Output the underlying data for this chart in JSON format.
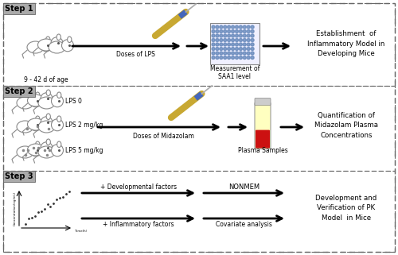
{
  "bg_color": "#ffffff",
  "border_color": "#666666",
  "step_bg": "#aaaaaa",
  "step1": {
    "label": "Step 1",
    "mice_label": "9 - 42 d of age",
    "arrow1_label": "Doses of LPS",
    "arrow2_label": "Measurement of\nSAA1 level",
    "result": "Establishment  of\nInflammatory Model in\nDeveloping Mice"
  },
  "step2": {
    "label": "Step 2",
    "lps_labels": [
      "LPS 0",
      "LPS 2 mg/kg",
      "LPS 5 mg/kg"
    ],
    "arrow1_label": "Doses of Midazolam",
    "arrow2_label": "Plasma Samples",
    "result": "Quantification of\nMidazolam Plasma\nConcentrations"
  },
  "step3": {
    "label": "Step 3",
    "factor1": "+ Developmental factors",
    "factor2": "+ Inflammatory factors",
    "nonmem1": "NONMEM",
    "nonmem2": "Covariate analysis",
    "result": "Development and\nVerification of PK\nModel  in Mice"
  }
}
